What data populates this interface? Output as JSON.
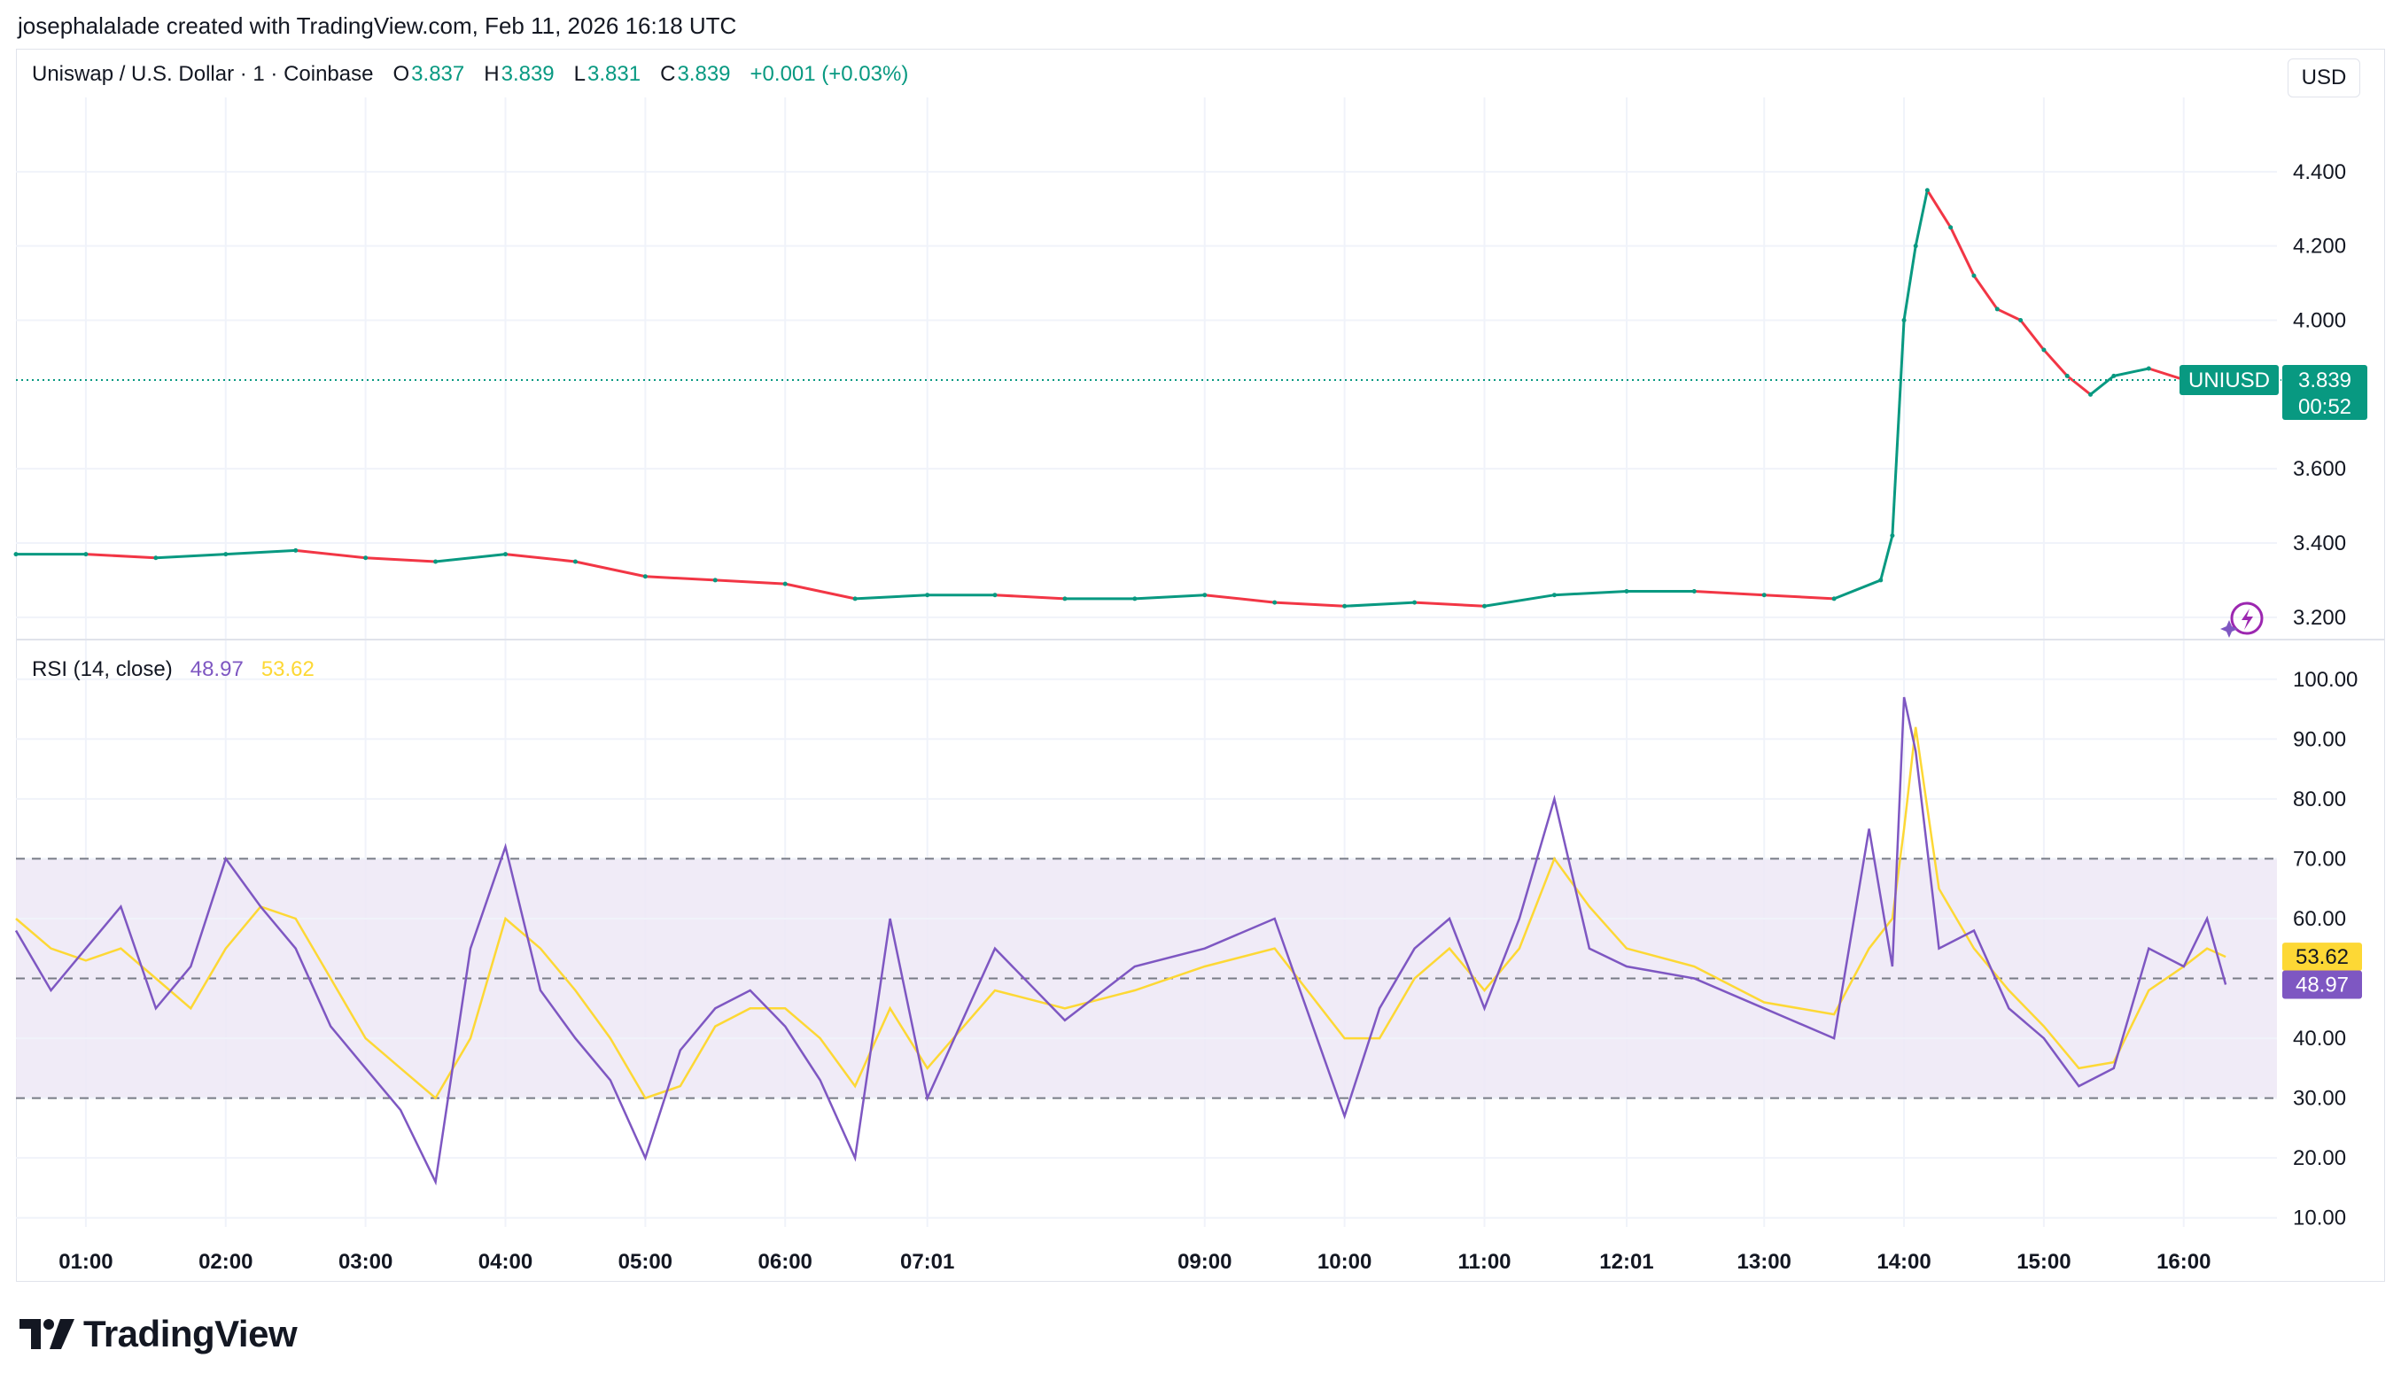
{
  "header": {
    "caption": "josephalalade created with TradingView.com, Feb 11, 2026 16:18 UTC"
  },
  "legend": {
    "symbol": "Uniswap / U.S. Dollar · 1 · Coinbase",
    "o_label": "O",
    "o_value": "3.837",
    "h_label": "H",
    "h_value": "3.839",
    "l_label": "L",
    "l_value": "3.831",
    "c_label": "C",
    "c_value": "3.839",
    "change": "+0.001 (+0.03%)"
  },
  "currency": "USD",
  "rsi_legend": {
    "name": "RSI (14, close)",
    "rsi_value": "48.97",
    "ma_value": "53.62"
  },
  "price_tag": {
    "symbol": "UNIUSD",
    "price": "3.839",
    "countdown": "00:52"
  },
  "rsi_tags": {
    "ma": "53.62",
    "rsi": "48.97"
  },
  "colors": {
    "up": "#089981",
    "down": "#f23645",
    "rsi": "#7e57c2",
    "rsi_ma": "#fdd835",
    "band": "#ede7f6"
  },
  "icons": {
    "quick_action": "lightning-sparkle-icon",
    "logo": "tradingview-logo-icon"
  },
  "footer": {
    "brand": "TradingView"
  },
  "chart_data": [
    {
      "type": "line",
      "title": "Uniswap / U.S. Dollar · 1 · Coinbase",
      "y_ticks": [
        "4.400",
        "4.200",
        "4.000",
        "3.600",
        "3.400",
        "3.200"
      ],
      "ylim": [
        3.14,
        4.6
      ],
      "last_price": 3.839,
      "x_ticks": [
        "01:00",
        "02:00",
        "03:00",
        "04:00",
        "05:00",
        "06:00",
        "07:01",
        "09:00",
        "10:00",
        "11:00",
        "12:01",
        "13:00",
        "14:00",
        "15:00",
        "16:00"
      ],
      "x": [
        "00:30",
        "01:00",
        "01:30",
        "02:00",
        "02:30",
        "03:00",
        "03:30",
        "04:00",
        "04:30",
        "05:00",
        "05:30",
        "06:00",
        "06:30",
        "07:01",
        "07:30",
        "08:00",
        "08:30",
        "09:00",
        "09:30",
        "10:00",
        "10:30",
        "11:00",
        "11:30",
        "12:01",
        "12:30",
        "13:00",
        "13:30",
        "13:50",
        "13:55",
        "14:00",
        "14:05",
        "14:10",
        "14:20",
        "14:30",
        "14:40",
        "14:50",
        "15:00",
        "15:10",
        "15:20",
        "15:30",
        "15:45",
        "16:00",
        "16:10",
        "16:18"
      ],
      "values": [
        3.37,
        3.37,
        3.36,
        3.37,
        3.38,
        3.36,
        3.35,
        3.37,
        3.35,
        3.31,
        3.3,
        3.29,
        3.25,
        3.26,
        3.26,
        3.25,
        3.25,
        3.26,
        3.24,
        3.23,
        3.24,
        3.23,
        3.26,
        3.27,
        3.27,
        3.26,
        3.25,
        3.3,
        3.42,
        4.0,
        4.2,
        4.35,
        4.25,
        4.12,
        4.03,
        4.0,
        3.92,
        3.85,
        3.8,
        3.85,
        3.87,
        3.84,
        3.82,
        3.839
      ],
      "series": [
        {
          "name": "UNIUSD"
        }
      ],
      "grid": true
    },
    {
      "type": "line",
      "title": "RSI (14, close)",
      "y_ticks": [
        "100.00",
        "90.00",
        "80.00",
        "70.00",
        "60.00",
        "40.00",
        "30.00",
        "20.00",
        "10.00"
      ],
      "ylim": [
        7,
        101
      ],
      "bands": [
        30,
        50,
        70
      ],
      "x": [
        "00:30",
        "00:45",
        "01:00",
        "01:15",
        "01:30",
        "01:45",
        "02:00",
        "02:15",
        "02:30",
        "02:45",
        "03:00",
        "03:15",
        "03:30",
        "03:45",
        "04:00",
        "04:15",
        "04:30",
        "04:45",
        "05:00",
        "05:15",
        "05:30",
        "05:45",
        "06:00",
        "06:15",
        "06:30",
        "06:45",
        "07:01",
        "07:30",
        "08:00",
        "08:30",
        "09:00",
        "09:30",
        "10:00",
        "10:15",
        "10:30",
        "10:45",
        "11:00",
        "11:15",
        "11:30",
        "11:45",
        "12:01",
        "12:30",
        "13:00",
        "13:30",
        "13:45",
        "13:55",
        "14:00",
        "14:05",
        "14:15",
        "14:30",
        "14:45",
        "15:00",
        "15:15",
        "15:30",
        "15:45",
        "16:00",
        "16:10",
        "16:18"
      ],
      "series": [
        {
          "name": "RSI",
          "values": [
            58,
            48,
            55,
            62,
            45,
            52,
            70,
            62,
            55,
            42,
            35,
            28,
            16,
            55,
            72,
            48,
            40,
            33,
            20,
            38,
            45,
            48,
            42,
            33,
            20,
            60,
            30,
            55,
            43,
            52,
            55,
            60,
            27,
            45,
            55,
            60,
            45,
            60,
            80,
            55,
            52,
            50,
            45,
            40,
            75,
            52,
            97,
            88,
            55,
            58,
            45,
            40,
            32,
            35,
            55,
            52,
            60,
            48.97
          ]
        },
        {
          "name": "MA",
          "values": [
            60,
            55,
            53,
            55,
            50,
            45,
            55,
            62,
            60,
            50,
            40,
            35,
            30,
            40,
            60,
            55,
            48,
            40,
            30,
            32,
            42,
            45,
            45,
            40,
            32,
            45,
            35,
            48,
            45,
            48,
            52,
            55,
            40,
            40,
            50,
            55,
            48,
            55,
            70,
            62,
            55,
            52,
            46,
            44,
            55,
            60,
            75,
            92,
            65,
            55,
            48,
            42,
            35,
            36,
            48,
            52,
            55,
            53.62
          ]
        }
      ]
    }
  ]
}
